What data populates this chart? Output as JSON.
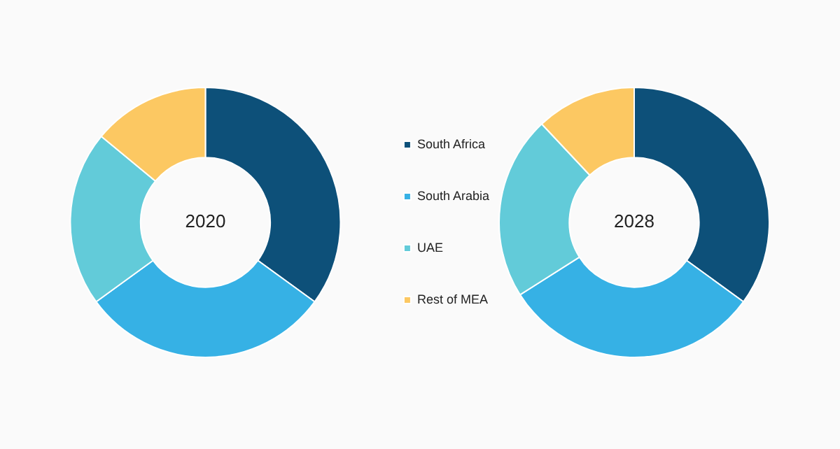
{
  "chart_data": {
    "type": "donut",
    "categories": [
      "South Africa",
      "South Arabia",
      "UAE",
      "Rest of MEA"
    ],
    "colors": [
      "#0d5079",
      "#36b1e5",
      "#62cbd9",
      "#fcc862"
    ],
    "legend": "right",
    "series": [
      {
        "name": "2020",
        "values": [
          35,
          30,
          21,
          14
        ]
      },
      {
        "name": "2028",
        "values": [
          35,
          31,
          22,
          12
        ]
      }
    ]
  }
}
